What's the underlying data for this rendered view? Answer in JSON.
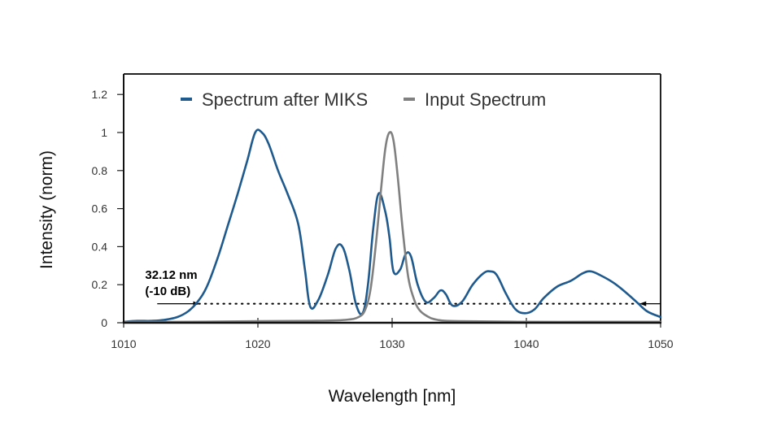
{
  "chart_data": {
    "type": "line",
    "title": "",
    "xlabel": "Wavelength [nm]",
    "ylabel": "Intensity (norm)",
    "xlim": [
      1010,
      1050
    ],
    "ylim": [
      0,
      1.3
    ],
    "xticks": [
      1010,
      1020,
      1030,
      1040,
      1050
    ],
    "xtick_labels": [
      "1010",
      "1020",
      "1030",
      "1040",
      "1050"
    ],
    "yticks": [
      0,
      0.2,
      0.4,
      0.6,
      0.8,
      1,
      1.2
    ],
    "ytick_labels": [
      "0",
      "0.2",
      "0.4",
      "0.6",
      "0.8",
      "1",
      "1.2"
    ],
    "grid": false,
    "legend": {
      "placement": "top-center",
      "orientation": "horizontal"
    },
    "series": [
      {
        "name": "Spectrum after MIKS",
        "color": "#1f5a8e",
        "x": [
          1010,
          1011,
          1012,
          1013,
          1014,
          1014.8,
          1015.5,
          1016.2,
          1017,
          1017.8,
          1018.5,
          1019.2,
          1019.8,
          1020.3,
          1020.8,
          1021.5,
          1022.2,
          1023,
          1023.5,
          1023.9,
          1024.5,
          1025.2,
          1025.8,
          1026.3,
          1026.8,
          1027.3,
          1027.8,
          1028.2,
          1028.6,
          1029.0,
          1029.5,
          1029.8,
          1030.1,
          1030.6,
          1031.0,
          1031.4,
          1031.9,
          1032.5,
          1033.1,
          1033.6,
          1034.0,
          1034.5,
          1035.2,
          1036.0,
          1036.8,
          1037.3,
          1037.8,
          1038.5,
          1039.2,
          1039.9,
          1040.6,
          1041.3,
          1042.3,
          1043.3,
          1044.2,
          1044.8,
          1045.5,
          1046.5,
          1047.4,
          1048.2,
          1049.0,
          1050
        ],
        "y": [
          0.005,
          0.01,
          0.01,
          0.015,
          0.03,
          0.06,
          0.11,
          0.19,
          0.34,
          0.52,
          0.68,
          0.85,
          1.0,
          1.0,
          0.94,
          0.8,
          0.68,
          0.52,
          0.28,
          0.085,
          0.12,
          0.25,
          0.39,
          0.4,
          0.28,
          0.1,
          0.05,
          0.2,
          0.5,
          0.68,
          0.58,
          0.45,
          0.27,
          0.28,
          0.36,
          0.35,
          0.2,
          0.11,
          0.13,
          0.17,
          0.15,
          0.09,
          0.11,
          0.2,
          0.26,
          0.27,
          0.25,
          0.15,
          0.07,
          0.05,
          0.07,
          0.13,
          0.19,
          0.22,
          0.26,
          0.27,
          0.25,
          0.21,
          0.16,
          0.11,
          0.06,
          0.03
        ]
      },
      {
        "name": "Input Spectrum",
        "color": "#808080",
        "x": [
          1010,
          1015,
          1020,
          1024,
          1026.5,
          1027.5,
          1028.0,
          1028.4,
          1028.8,
          1029.2,
          1029.5,
          1029.8,
          1030.1,
          1030.4,
          1030.8,
          1031.2,
          1031.6,
          1032.0,
          1032.6,
          1033.4,
          1035,
          1040,
          1045,
          1050
        ],
        "y": [
          0.005,
          0.005,
          0.008,
          0.01,
          0.015,
          0.03,
          0.07,
          0.18,
          0.42,
          0.72,
          0.92,
          1.0,
          0.96,
          0.78,
          0.48,
          0.24,
          0.13,
          0.07,
          0.035,
          0.015,
          0.008,
          0.005,
          0.005,
          0.005
        ]
      }
    ],
    "annotations": [
      {
        "type": "dotted-hline",
        "y": 0.1,
        "x_start": 1015.6,
        "x_end": 1048.5
      },
      {
        "type": "arrow",
        "from_x": 1012.5,
        "to_x": 1015.6,
        "y": 0.1,
        "direction": "right"
      },
      {
        "type": "arrow",
        "from_x": 1050,
        "to_x": 1048.5,
        "y": 0.1,
        "direction": "left"
      },
      {
        "type": "text",
        "lines": [
          "32.12 nm",
          "(-10 dB)"
        ],
        "x": 1011.6,
        "y": 0.24
      }
    ]
  },
  "labels": {
    "annotation_line1": "32.12 nm",
    "annotation_line2": "(-10 dB)"
  }
}
